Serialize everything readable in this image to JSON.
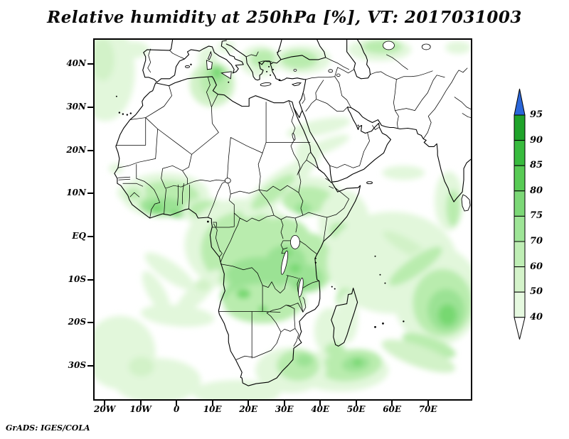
{
  "title": "Relative humidity at 250hPa [%], VT: 2017031003",
  "credit": "GrADS: IGES/COLA",
  "axes": {
    "lat_ticks": [
      {
        "label": "40N",
        "lat": 40
      },
      {
        "label": "30N",
        "lat": 30
      },
      {
        "label": "20N",
        "lat": 20
      },
      {
        "label": "10N",
        "lat": 10
      },
      {
        "label": "EQ",
        "lat": 0
      },
      {
        "label": "10S",
        "lat": -10
      },
      {
        "label": "20S",
        "lat": -20
      },
      {
        "label": "30S",
        "lat": -30
      }
    ],
    "lon_ticks": [
      {
        "label": "20W",
        "lon": -20
      },
      {
        "label": "10W",
        "lon": -10
      },
      {
        "label": "0",
        "lon": 0
      },
      {
        "label": "10E",
        "lon": 10
      },
      {
        "label": "20E",
        "lon": 20
      },
      {
        "label": "30E",
        "lon": 30
      },
      {
        "label": "40E",
        "lon": 40
      },
      {
        "label": "50E",
        "lon": 50
      },
      {
        "label": "60E",
        "lon": 60
      },
      {
        "label": "70E",
        "lon": 70
      }
    ]
  },
  "colorbar": {
    "boundary_labels": [
      "95",
      "90",
      "85",
      "80",
      "75",
      "70",
      "60",
      "50",
      "40"
    ],
    "segment_colors": [
      "#1fa32a",
      "#38bb3e",
      "#58cb55",
      "#7cd877",
      "#9ee597",
      "#bfeeb5",
      "#d4f3ca",
      "#e6f9e0"
    ],
    "above_color": "#2a66d9",
    "below_color": "#ffffff",
    "units": "%"
  },
  "chart_data": {
    "type": "heatmap",
    "subtype": "filled-contour-geographic-map",
    "title": "Relative humidity at 250hPa [%], VT: 2017031003",
    "variable": "Relative humidity",
    "level": "250hPa",
    "units": "%",
    "valid_time": "2017031003",
    "region": "Africa, Mediterranean, Middle East, western Indian Ocean",
    "x_tick_labels": [
      "20W",
      "10W",
      "0",
      "10E",
      "20E",
      "30E",
      "40E",
      "50E",
      "60E",
      "70E"
    ],
    "y_tick_labels": [
      "40N",
      "30N",
      "20N",
      "10N",
      "EQ",
      "10S",
      "20S",
      "30S"
    ],
    "scale_levels": [
      40,
      50,
      60,
      70,
      75,
      80,
      85,
      90,
      95
    ],
    "legend_position": "right",
    "grid": false,
    "high_humidity_regions": [
      {
        "area": "Tunisia / NE Algeria / central Mediterranean",
        "approx_value": "60-80"
      },
      {
        "area": "West Africa near 10N (Guinea to Ghana/Togo/Benin)",
        "approx_value": "60-80"
      },
      {
        "area": "Congo basin, Uganda, Kenya, Tanzania (equatorial band)",
        "approx_value": "50-75"
      },
      {
        "area": "Angola / Zambia",
        "approx_value": "60-80"
      },
      {
        "area": "Sudan / Ethiopia diagonal band",
        "approx_value": "50-70"
      },
      {
        "area": "Anatolia (Turkey) and Aegean",
        "approx_value": "50-70"
      },
      {
        "area": "Tropical cyclone swirl near 55-60E, 10-20S in Indian Ocean",
        "approx_value": "60-80"
      },
      {
        "area": "Ocean south and southeast of Madagascar",
        "approx_value": "50-75"
      },
      {
        "area": "Eastern South Africa coast",
        "approx_value": "50-70"
      },
      {
        "area": "SW Indian-Ocean swirl off Angola/Namibia coast",
        "approx_value": "40-55"
      },
      {
        "area": "Indian west coast",
        "approx_value": "50-65"
      },
      {
        "area": "NE Atlantic top-left corner",
        "approx_value": "40-60"
      }
    ]
  }
}
